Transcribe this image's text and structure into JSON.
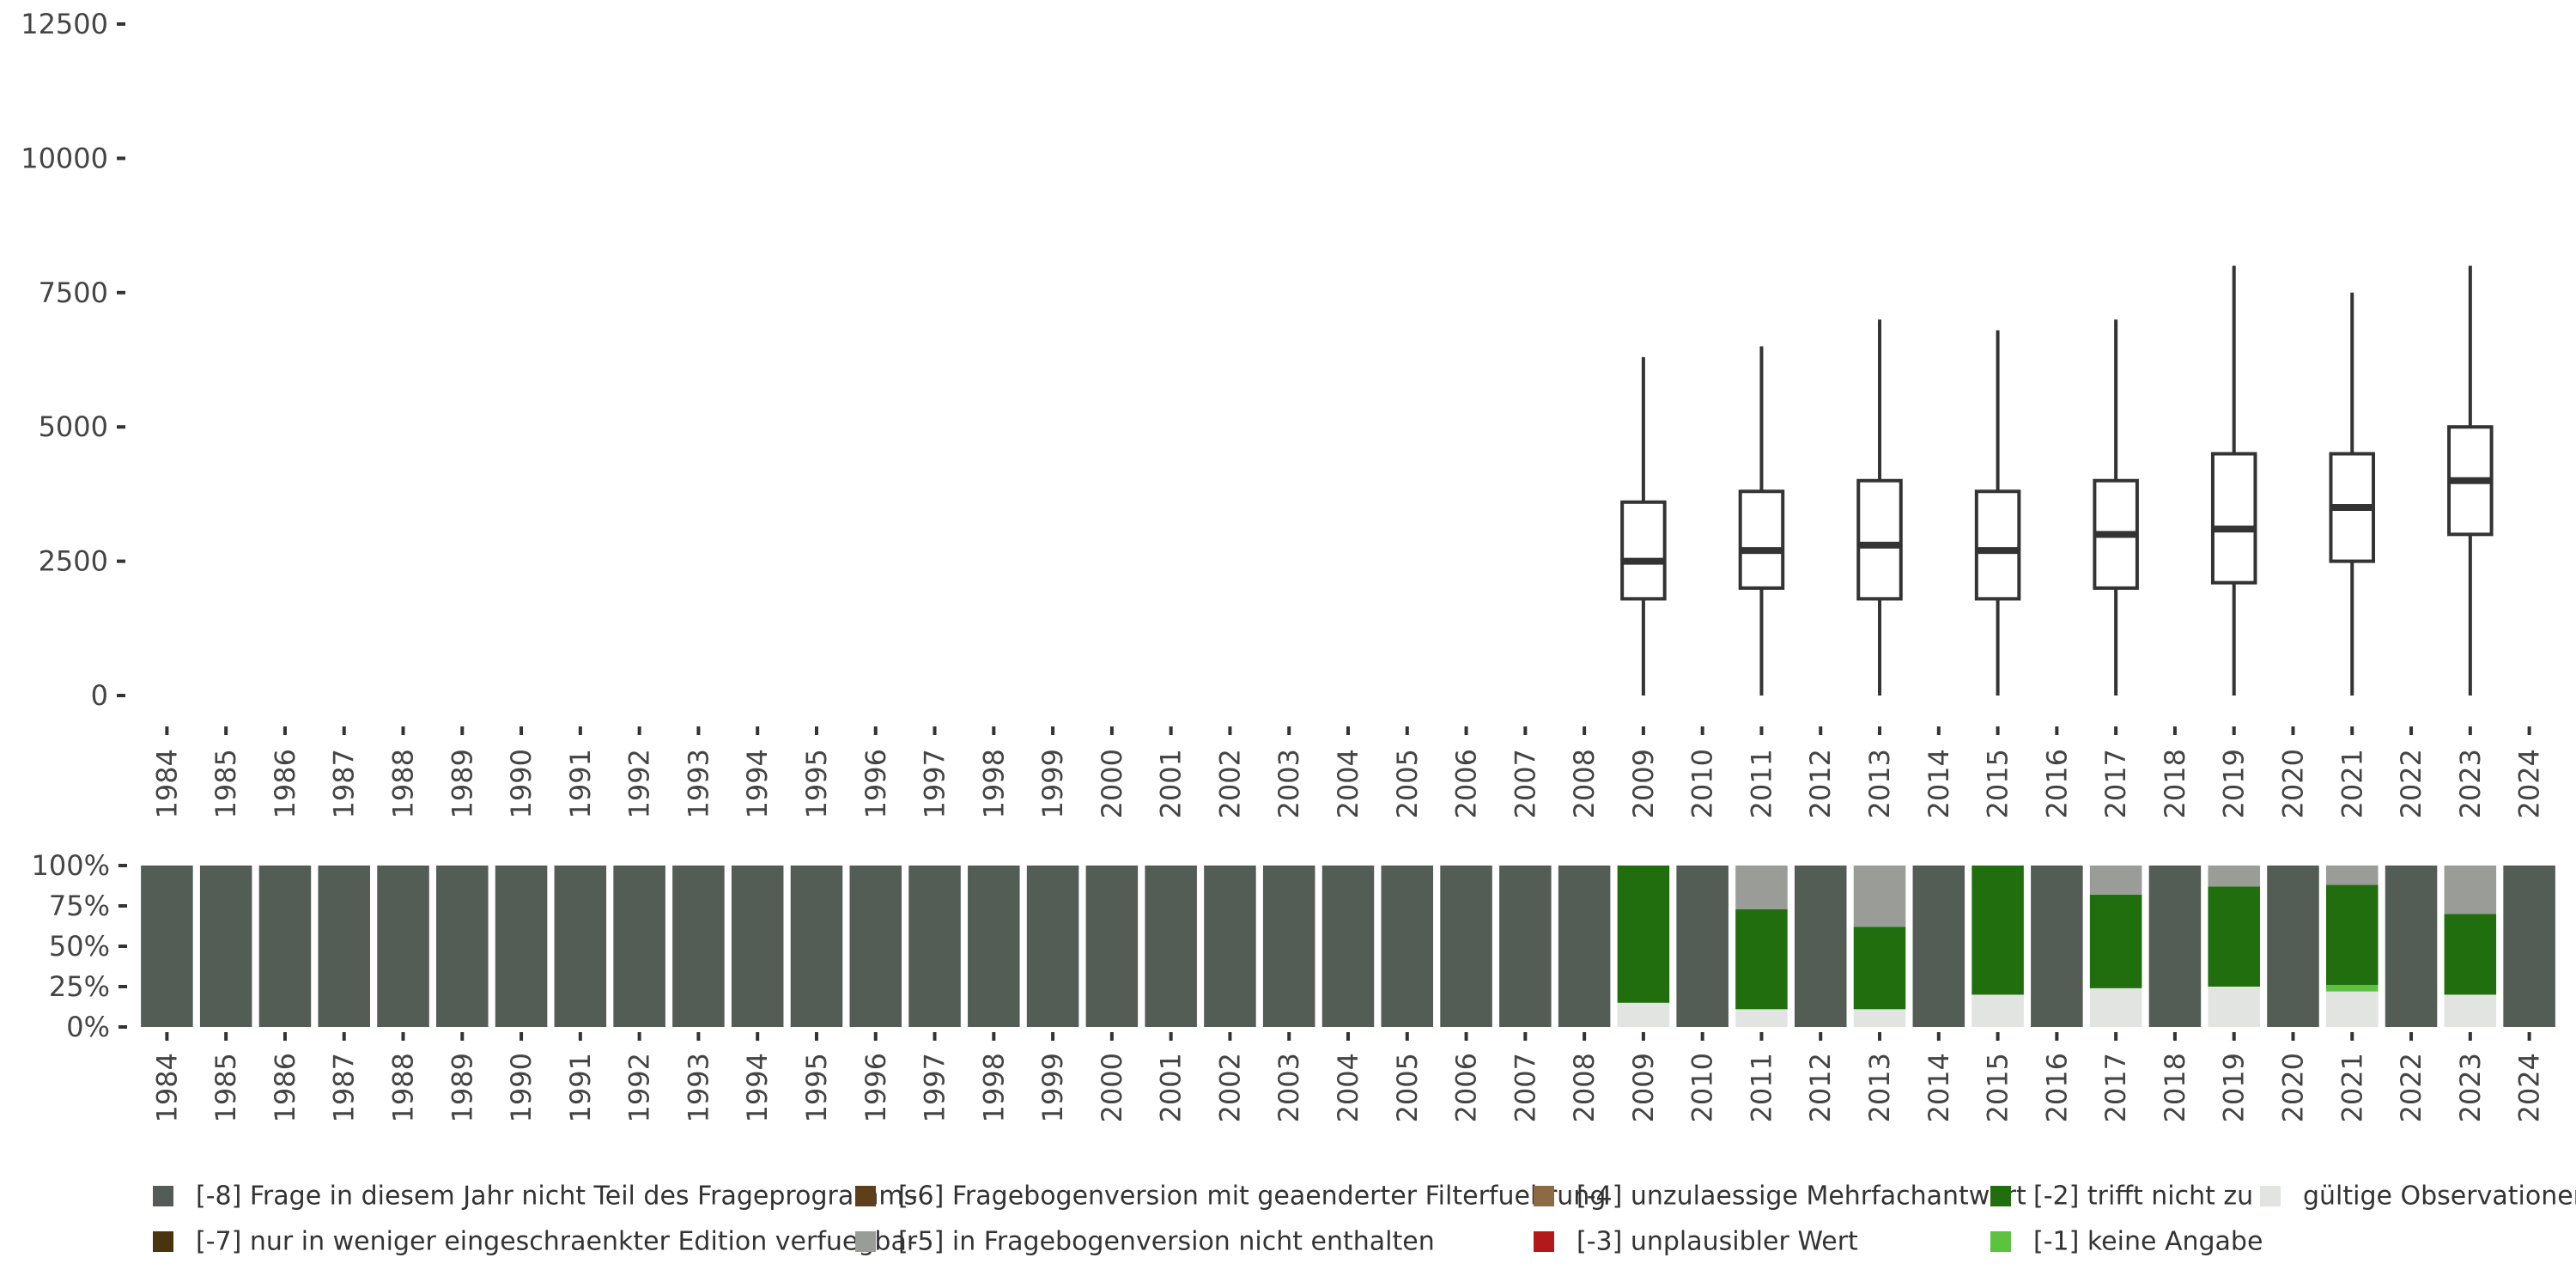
{
  "chart_data": [
    {
      "type": "boxplot",
      "title": "",
      "xlabel": "",
      "ylabel": "",
      "categories": [
        "1984",
        "1985",
        "1986",
        "1987",
        "1988",
        "1989",
        "1990",
        "1991",
        "1992",
        "1993",
        "1994",
        "1995",
        "1996",
        "1997",
        "1998",
        "1999",
        "2000",
        "2001",
        "2002",
        "2003",
        "2004",
        "2005",
        "2006",
        "2007",
        "2008",
        "2009",
        "2010",
        "2011",
        "2012",
        "2013",
        "2014",
        "2015",
        "2016",
        "2017",
        "2018",
        "2019",
        "2020",
        "2021",
        "2022",
        "2023",
        "2024"
      ],
      "y_ticks": [
        0,
        2500,
        5000,
        7500,
        10000,
        12500
      ],
      "y_tick_labels": [
        "0",
        "2500",
        "5000",
        "7500",
        "10000",
        "12500"
      ],
      "ylim": [
        0,
        12500
      ],
      "grid": false,
      "boxes": [
        {
          "year": "2009",
          "min": 0,
          "q1": 1800,
          "median": 2500,
          "q3": 3600,
          "max": 6300
        },
        {
          "year": "2011",
          "min": 0,
          "q1": 2000,
          "median": 2700,
          "q3": 3800,
          "max": 6500
        },
        {
          "year": "2013",
          "min": 0,
          "q1": 1800,
          "median": 2800,
          "q3": 4000,
          "max": 7000
        },
        {
          "year": "2015",
          "min": 0,
          "q1": 1800,
          "median": 2700,
          "q3": 3800,
          "max": 6800
        },
        {
          "year": "2017",
          "min": 0,
          "q1": 2000,
          "median": 3000,
          "q3": 4000,
          "max": 7000
        },
        {
          "year": "2019",
          "min": 0,
          "q1": 2100,
          "median": 3100,
          "q3": 4500,
          "max": 8000
        },
        {
          "year": "2021",
          "min": 0,
          "q1": 2500,
          "median": 3500,
          "q3": 4500,
          "max": 7500
        },
        {
          "year": "2023",
          "min": 0,
          "q1": 3000,
          "median": 4000,
          "q3": 5000,
          "max": 8000
        }
      ]
    },
    {
      "type": "stacked_bar",
      "title": "",
      "xlabel": "",
      "ylabel": "",
      "categories": [
        "1984",
        "1985",
        "1986",
        "1987",
        "1988",
        "1989",
        "1990",
        "1991",
        "1992",
        "1993",
        "1994",
        "1995",
        "1996",
        "1997",
        "1998",
        "1999",
        "2000",
        "2001",
        "2002",
        "2003",
        "2004",
        "2005",
        "2006",
        "2007",
        "2008",
        "2009",
        "2010",
        "2011",
        "2012",
        "2013",
        "2014",
        "2015",
        "2016",
        "2017",
        "2018",
        "2019",
        "2020",
        "2021",
        "2022",
        "2023",
        "2024"
      ],
      "y_ticks": [
        0,
        25,
        50,
        75,
        100
      ],
      "y_tick_labels": [
        "0%",
        "25%",
        "50%",
        "75%",
        "100%"
      ],
      "ylim": [
        0,
        100
      ],
      "stack_order": [
        "valid",
        "m1",
        "m2",
        "m3",
        "m4",
        "m5",
        "m6",
        "m7",
        "m8"
      ],
      "series": [
        {
          "key": "m8",
          "name": "[-8] Frage in diesem Jahr nicht Teil des Frageprogramms",
          "color": "#545c56",
          "values": [
            100,
            100,
            100,
            100,
            100,
            100,
            100,
            100,
            100,
            100,
            100,
            100,
            100,
            100,
            100,
            100,
            100,
            100,
            100,
            100,
            100,
            100,
            100,
            100,
            100,
            0,
            100,
            0,
            100,
            0,
            100,
            0,
            100,
            0,
            100,
            0,
            100,
            0,
            100,
            0,
            100
          ]
        },
        {
          "key": "m7",
          "name": "[-7] nur in weniger eingeschraenkter Edition verfuegbar",
          "color": "#4a3410",
          "values": [
            0,
            0,
            0,
            0,
            0,
            0,
            0,
            0,
            0,
            0,
            0,
            0,
            0,
            0,
            0,
            0,
            0,
            0,
            0,
            0,
            0,
            0,
            0,
            0,
            0,
            0,
            0,
            0,
            0,
            0,
            0,
            0,
            0,
            0,
            0,
            0,
            0,
            0,
            0,
            0,
            0
          ]
        },
        {
          "key": "m6",
          "name": "[-6] Fragebogenversion mit geaenderter Filterfuehrung",
          "color": "#5e3f1a",
          "values": [
            0,
            0,
            0,
            0,
            0,
            0,
            0,
            0,
            0,
            0,
            0,
            0,
            0,
            0,
            0,
            0,
            0,
            0,
            0,
            0,
            0,
            0,
            0,
            0,
            0,
            0,
            0,
            0,
            0,
            0,
            0,
            0,
            0,
            0,
            0,
            0,
            0,
            0,
            0,
            0,
            0
          ]
        },
        {
          "key": "m5",
          "name": "[-5] in Fragebogenversion nicht enthalten",
          "color": "#9a9c97",
          "values": [
            0,
            0,
            0,
            0,
            0,
            0,
            0,
            0,
            0,
            0,
            0,
            0,
            0,
            0,
            0,
            0,
            0,
            0,
            0,
            0,
            0,
            0,
            0,
            0,
            0,
            0,
            0,
            27,
            0,
            38,
            0,
            0,
            0,
            18,
            0,
            13,
            0,
            12,
            0,
            30,
            0
          ]
        },
        {
          "key": "m4",
          "name": "[-4] unzulaessige Mehrfachantwort",
          "color": "#8c6a44",
          "values": [
            0,
            0,
            0,
            0,
            0,
            0,
            0,
            0,
            0,
            0,
            0,
            0,
            0,
            0,
            0,
            0,
            0,
            0,
            0,
            0,
            0,
            0,
            0,
            0,
            0,
            0,
            0,
            0,
            0,
            0,
            0,
            0,
            0,
            0,
            0,
            0,
            0,
            0,
            0,
            0,
            0
          ]
        },
        {
          "key": "m3",
          "name": "[-3] unplausibler Wert",
          "color": "#b3181b",
          "values": [
            0,
            0,
            0,
            0,
            0,
            0,
            0,
            0,
            0,
            0,
            0,
            0,
            0,
            0,
            0,
            0,
            0,
            0,
            0,
            0,
            0,
            0,
            0,
            0,
            0,
            0,
            0,
            0,
            0,
            0,
            0,
            0,
            0,
            0,
            0,
            0,
            0,
            0,
            0,
            0,
            0
          ]
        },
        {
          "key": "m2",
          "name": "[-2] trifft nicht zu",
          "color": "#216e0f",
          "values": [
            0,
            0,
            0,
            0,
            0,
            0,
            0,
            0,
            0,
            0,
            0,
            0,
            0,
            0,
            0,
            0,
            0,
            0,
            0,
            0,
            0,
            0,
            0,
            0,
            0,
            85,
            0,
            62,
            0,
            51,
            0,
            80,
            0,
            58,
            0,
            62,
            0,
            62,
            0,
            50,
            0
          ]
        },
        {
          "key": "m1",
          "name": "[-1] keine Angabe",
          "color": "#5cc33f",
          "values": [
            0,
            0,
            0,
            0,
            0,
            0,
            0,
            0,
            0,
            0,
            0,
            0,
            0,
            0,
            0,
            0,
            0,
            0,
            0,
            0,
            0,
            0,
            0,
            0,
            0,
            0,
            0,
            0,
            0,
            0,
            0,
            0,
            0,
            0,
            0,
            0,
            0,
            4,
            0,
            0,
            0
          ]
        },
        {
          "key": "valid",
          "name": "gültige Observationen",
          "color": "#e1e4e0",
          "values": [
            0,
            0,
            0,
            0,
            0,
            0,
            0,
            0,
            0,
            0,
            0,
            0,
            0,
            0,
            0,
            0,
            0,
            0,
            0,
            0,
            0,
            0,
            0,
            0,
            0,
            15,
            0,
            11,
            0,
            11,
            0,
            20,
            0,
            24,
            0,
            25,
            0,
            22,
            0,
            20,
            0
          ]
        }
      ],
      "legend_position": "bottom"
    }
  ],
  "legend": {
    "rows": [
      [
        "m8",
        "m6",
        "m4",
        "m2",
        "valid"
      ],
      [
        "m7",
        "m5",
        "m3",
        "m1"
      ]
    ]
  }
}
